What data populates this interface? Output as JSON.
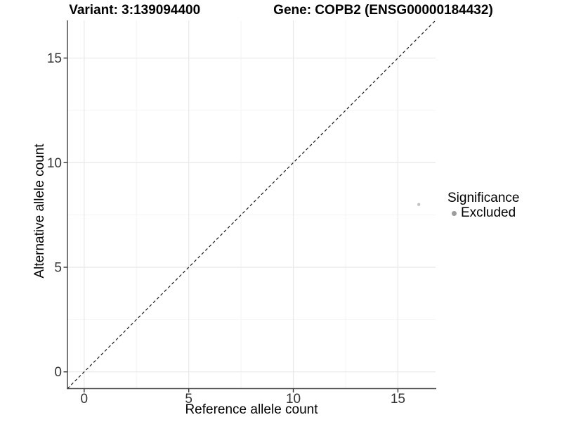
{
  "header": {
    "variant_title": "Variant: 3:139094400",
    "gene_title": "Gene: COPB2 (ENSG00000184432)"
  },
  "axes": {
    "x_title": "Reference allele count",
    "y_title": "Alternative allele count"
  },
  "legend": {
    "title": "Significance",
    "items": [
      {
        "label": "Excluded",
        "color": "#9c9c9c"
      }
    ]
  },
  "chart_data": {
    "type": "scatter",
    "title": "Variant: 3:139094400   Gene: COPB2 (ENSG00000184432)",
    "xlabel": "Reference allele count",
    "ylabel": "Alternative allele count",
    "xlim": [
      -0.8,
      16.8
    ],
    "ylim": [
      -0.8,
      16.8
    ],
    "x_ticks": [
      0,
      5,
      10,
      15
    ],
    "y_ticks": [
      0,
      5,
      10,
      15
    ],
    "x_minor_ticks": [
      2.5,
      7.5,
      12.5
    ],
    "y_minor_ticks": [
      2.5,
      7.5,
      12.5
    ],
    "grid": "major+minor",
    "legend_position": "right",
    "series": [
      {
        "name": "Excluded",
        "color": "#c3c3c3",
        "marker_radius": 2.2,
        "points": [
          {
            "x": 16,
            "y": 8
          }
        ]
      }
    ],
    "reference_line": {
      "type": "identity",
      "slope": 1,
      "intercept": 0,
      "style": "dashed",
      "color": "#1a1a1a"
    },
    "colors": {
      "grid_major": "#e8e8e8",
      "grid_minor": "#f4f4f4",
      "axis_line": "#4a4a4a",
      "tick_mark": "#333333",
      "tick_text": "#333333"
    }
  }
}
